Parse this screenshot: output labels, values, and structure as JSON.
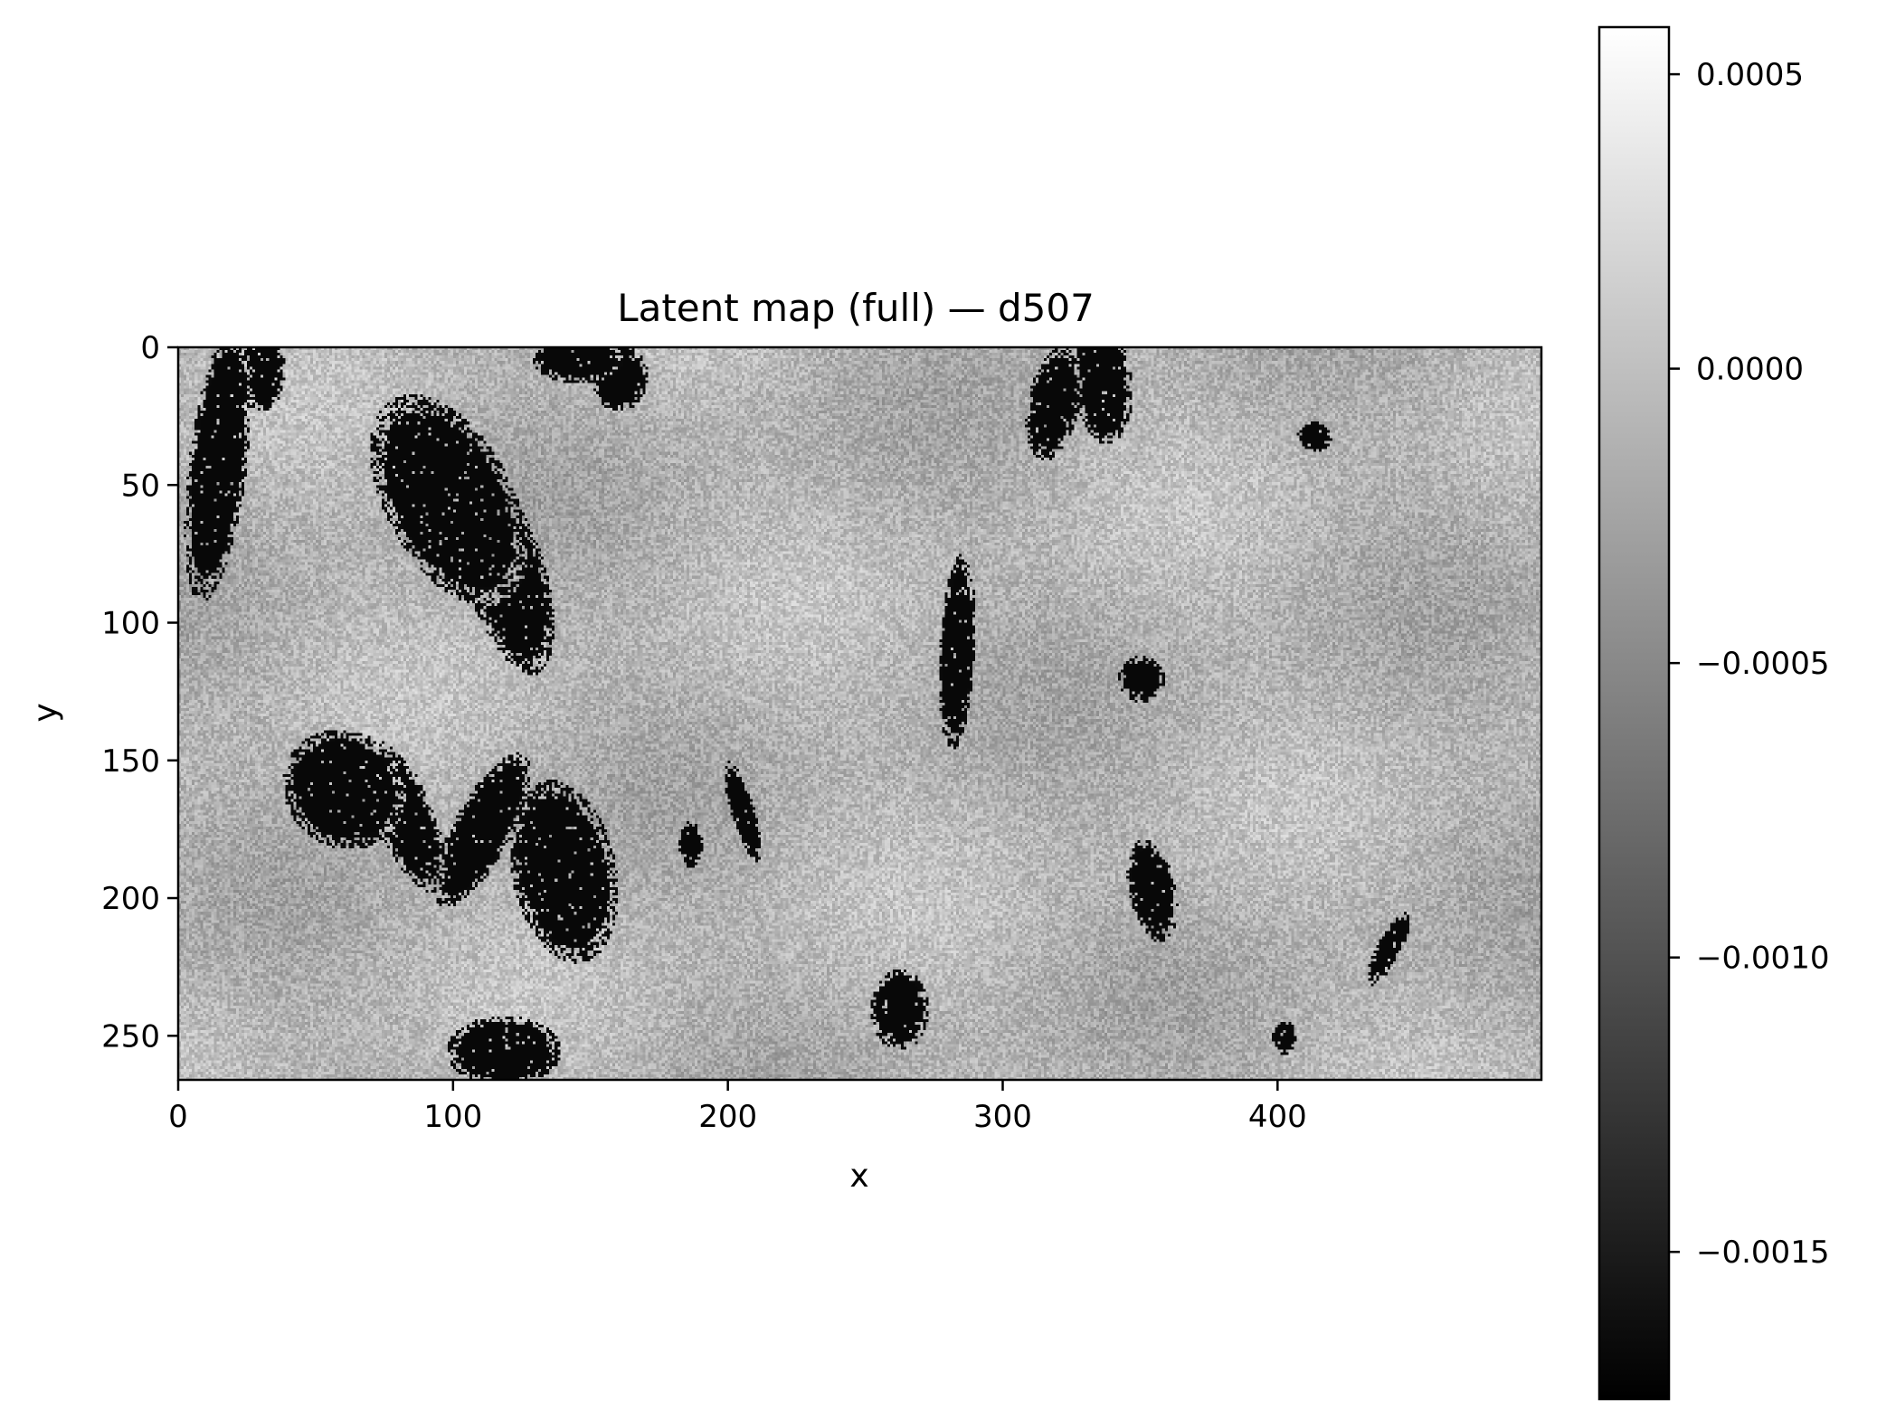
{
  "chart_data": {
    "type": "heatmap",
    "title": "Latent map (full) — d507",
    "xlabel": "x",
    "ylabel": "y",
    "xlim": [
      0,
      496
    ],
    "ylim": [
      266,
      0
    ],
    "y_axis_inverted": true,
    "colormap": "gray",
    "x_ticks": [
      "0",
      "100",
      "200",
      "300",
      "400"
    ],
    "x_tick_values": [
      0,
      100,
      200,
      300,
      400
    ],
    "y_ticks": [
      "0",
      "50",
      "100",
      "150",
      "200",
      "250"
    ],
    "y_tick_values": [
      0,
      50,
      100,
      150,
      200,
      250
    ],
    "colorbar": {
      "vmin": -0.00175,
      "vmax": 0.00058,
      "tick_values": [
        0.0005,
        0.0,
        -0.0005,
        -0.001,
        -0.0015
      ],
      "tick_labels": [
        "0.0005",
        "0.0000",
        "−0.0005",
        "−0.0010",
        "−0.0015"
      ]
    },
    "background_value_range": [
      -0.0001,
      0.0002
    ],
    "dark_regions_value": -0.0017
  }
}
